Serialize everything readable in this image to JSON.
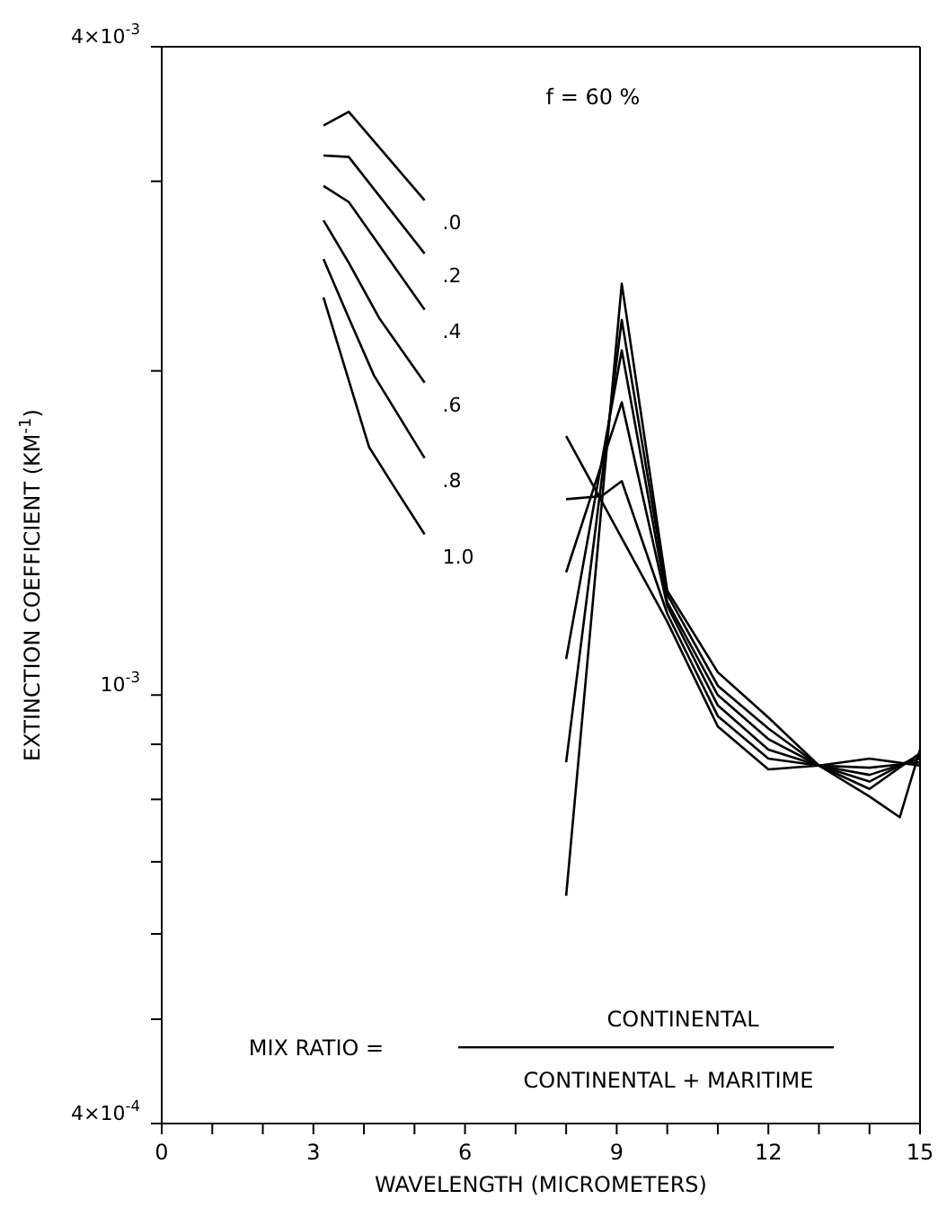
{
  "chart_data": {
    "type": "line",
    "xlabel": "WAVELENGTH (MICROMETERS)",
    "ylabel": "EXTINCTION COEFFICIENT (KM$^{-1}$)",
    "annotations": [
      "f = 60 %",
      "MIX RATIO =",
      "CONTINENTAL",
      "CONTINENTAL + MARITIME"
    ],
    "log": "y",
    "xlim": [
      0,
      15
    ],
    "xticks": [
      0,
      {
        "value": 1,
        "label": null
      },
      {
        "value": 2,
        "label": null
      },
      3,
      {
        "value": 4,
        "label": null
      },
      {
        "value": 5,
        "label": null
      },
      6,
      {
        "value": 7,
        "label": null
      },
      {
        "value": 8,
        "label": null
      },
      9,
      {
        "value": 10,
        "label": null
      },
      {
        "value": 11,
        "label": null
      },
      12,
      {
        "value": 13,
        "label": null
      },
      {
        "value": 14,
        "label": null
      },
      15
    ],
    "ylim": [
      0.0004,
      0.004
    ],
    "yticks": [
      {
        "value": 0.0004,
        "label": "4×10$^{-4}$"
      },
      {
        "value": 0.0005,
        "label": null
      },
      {
        "value": 0.0006,
        "label": null
      },
      {
        "value": 0.0007,
        "label": null
      },
      {
        "value": 0.0008,
        "label": null
      },
      {
        "value": 0.0009,
        "label": null
      },
      {
        "value": 0.001,
        "label": "10$^{-3}$"
      },
      {
        "value": 0.002,
        "label": null
      },
      {
        "value": 0.003,
        "label": null
      },
      {
        "value": 0.004,
        "label": "4×10$^{-3}$"
      }
    ],
    "marker": "none",
    "line_style": "solid",
    "series": [
      {
        "name": ".0",
        "color": "#000000",
        "x": [
          3.2,
          3.7,
          5.2,
          6.5,
          8,
          10,
          11,
          12,
          13,
          14,
          15
        ],
        "values": [
          0.00338,
          0.00348,
          0.00288,
          null,
          0.00174,
          0.00117,
          0.000935,
          0.000853,
          0.00086,
          0.000873,
          0.00086
        ]
      },
      {
        "name": ".2",
        "color": "#000000",
        "x": [
          3.2,
          3.7,
          5.2,
          6.5,
          8,
          8.7,
          9.1,
          10,
          11,
          12,
          13,
          14,
          15
        ],
        "values": [
          0.00317,
          0.00316,
          0.00257,
          null,
          0.00152,
          0.00153,
          0.00158,
          0.00119,
          0.000956,
          0.000873,
          0.00086,
          0.000856,
          0.000866
        ]
      },
      {
        "name": ".4",
        "color": "#000000",
        "x": [
          3.2,
          3.7,
          5.2,
          6.5,
          8,
          9.1,
          10,
          11,
          12,
          13,
          14,
          15
        ],
        "values": [
          0.00297,
          0.00287,
          0.00228,
          null,
          0.0013,
          0.00187,
          0.00121,
          0.000978,
          0.00089,
          0.00086,
          0.000843,
          0.000873
        ]
      },
      {
        "name": ".6",
        "color": "#000000",
        "x": [
          3.2,
          3.7,
          4.3,
          5.2,
          6.5,
          8,
          9.1,
          10,
          11,
          12,
          13,
          14,
          15
        ],
        "values": [
          0.00276,
          0.00252,
          0.00224,
          0.00195,
          null,
          0.00108,
          0.00209,
          0.00122,
          0.001,
          0.00091,
          0.00086,
          0.000831,
          0.00088
        ]
      },
      {
        "name": ".8",
        "color": "#000000",
        "x": [
          3.2,
          3.7,
          4.2,
          5.2,
          6.5,
          8,
          9.1,
          10,
          11,
          12,
          13,
          14,
          15
        ],
        "values": [
          0.00254,
          0.00224,
          0.00198,
          0.00166,
          null,
          0.000866,
          0.00223,
          0.00124,
          0.00102,
          0.000931,
          0.00086,
          0.000818,
          0.000883
        ]
      },
      {
        "name": "1.0",
        "color": "#000000",
        "x": [
          3.2,
          4.1,
          4.6,
          5.2,
          6.5,
          8,
          9.1,
          10,
          11,
          12,
          13,
          14,
          14.6,
          15
        ],
        "values": [
          0.00234,
          0.0017,
          0.00156,
          0.00141,
          null,
          0.000651,
          0.00241,
          0.00125,
          0.00105,
          0.000953,
          0.00086,
          0.000805,
          0.00077,
          0.00089
        ]
      }
    ]
  }
}
